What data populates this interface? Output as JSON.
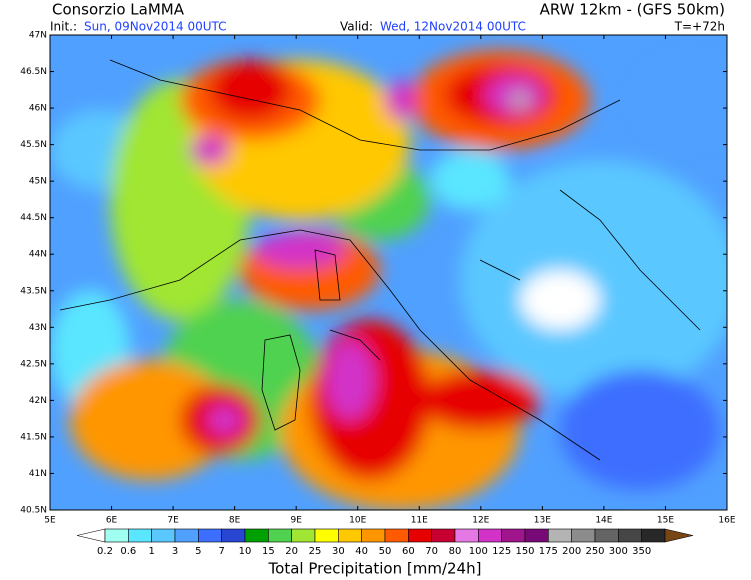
{
  "header": {
    "left_title": "Consorzio LaMMA",
    "right_title": "ARW 12km - (GFS 50km)",
    "init_label": "Init.:",
    "init_value": "Sun, 09Nov2014 00UTC",
    "valid_label": "Valid:",
    "valid_value": "Wed, 12Nov2014 00UTC",
    "forecast_step": "T=+72h"
  },
  "map": {
    "lat_labels": [
      "47N",
      "46.5N",
      "46N",
      "45.5N",
      "45N",
      "44.5N",
      "44N",
      "43.5N",
      "43N",
      "42.5N",
      "42N",
      "41.5N",
      "41N",
      "40.5N"
    ],
    "lon_labels": [
      "5E",
      "6E",
      "7E",
      "8E",
      "9E",
      "10E",
      "11E",
      "12E",
      "13E",
      "14E",
      "15E",
      "16E"
    ]
  },
  "colorbar": {
    "levels": [
      0.2,
      0.6,
      1,
      3,
      5,
      7,
      10,
      15,
      20,
      25,
      30,
      40,
      50,
      60,
      70,
      80,
      100,
      125,
      150,
      175,
      200,
      250,
      300,
      350
    ],
    "colors": [
      "#ffffff",
      "#a0fff0",
      "#5ae6ff",
      "#5ac8ff",
      "#50a0ff",
      "#3c6eff",
      "#2846d2",
      "#00a000",
      "#50d250",
      "#a0e632",
      "#ffff00",
      "#ffc800",
      "#ff9600",
      "#ff5a00",
      "#e60000",
      "#c80032",
      "#e678e6",
      "#d232c8",
      "#a0148c",
      "#780a78",
      "#b4b4b4",
      "#8c8c8c",
      "#646464",
      "#464646",
      "#282828",
      "#784614"
    ],
    "title": "Total Precipitation [mm/24h]"
  }
}
